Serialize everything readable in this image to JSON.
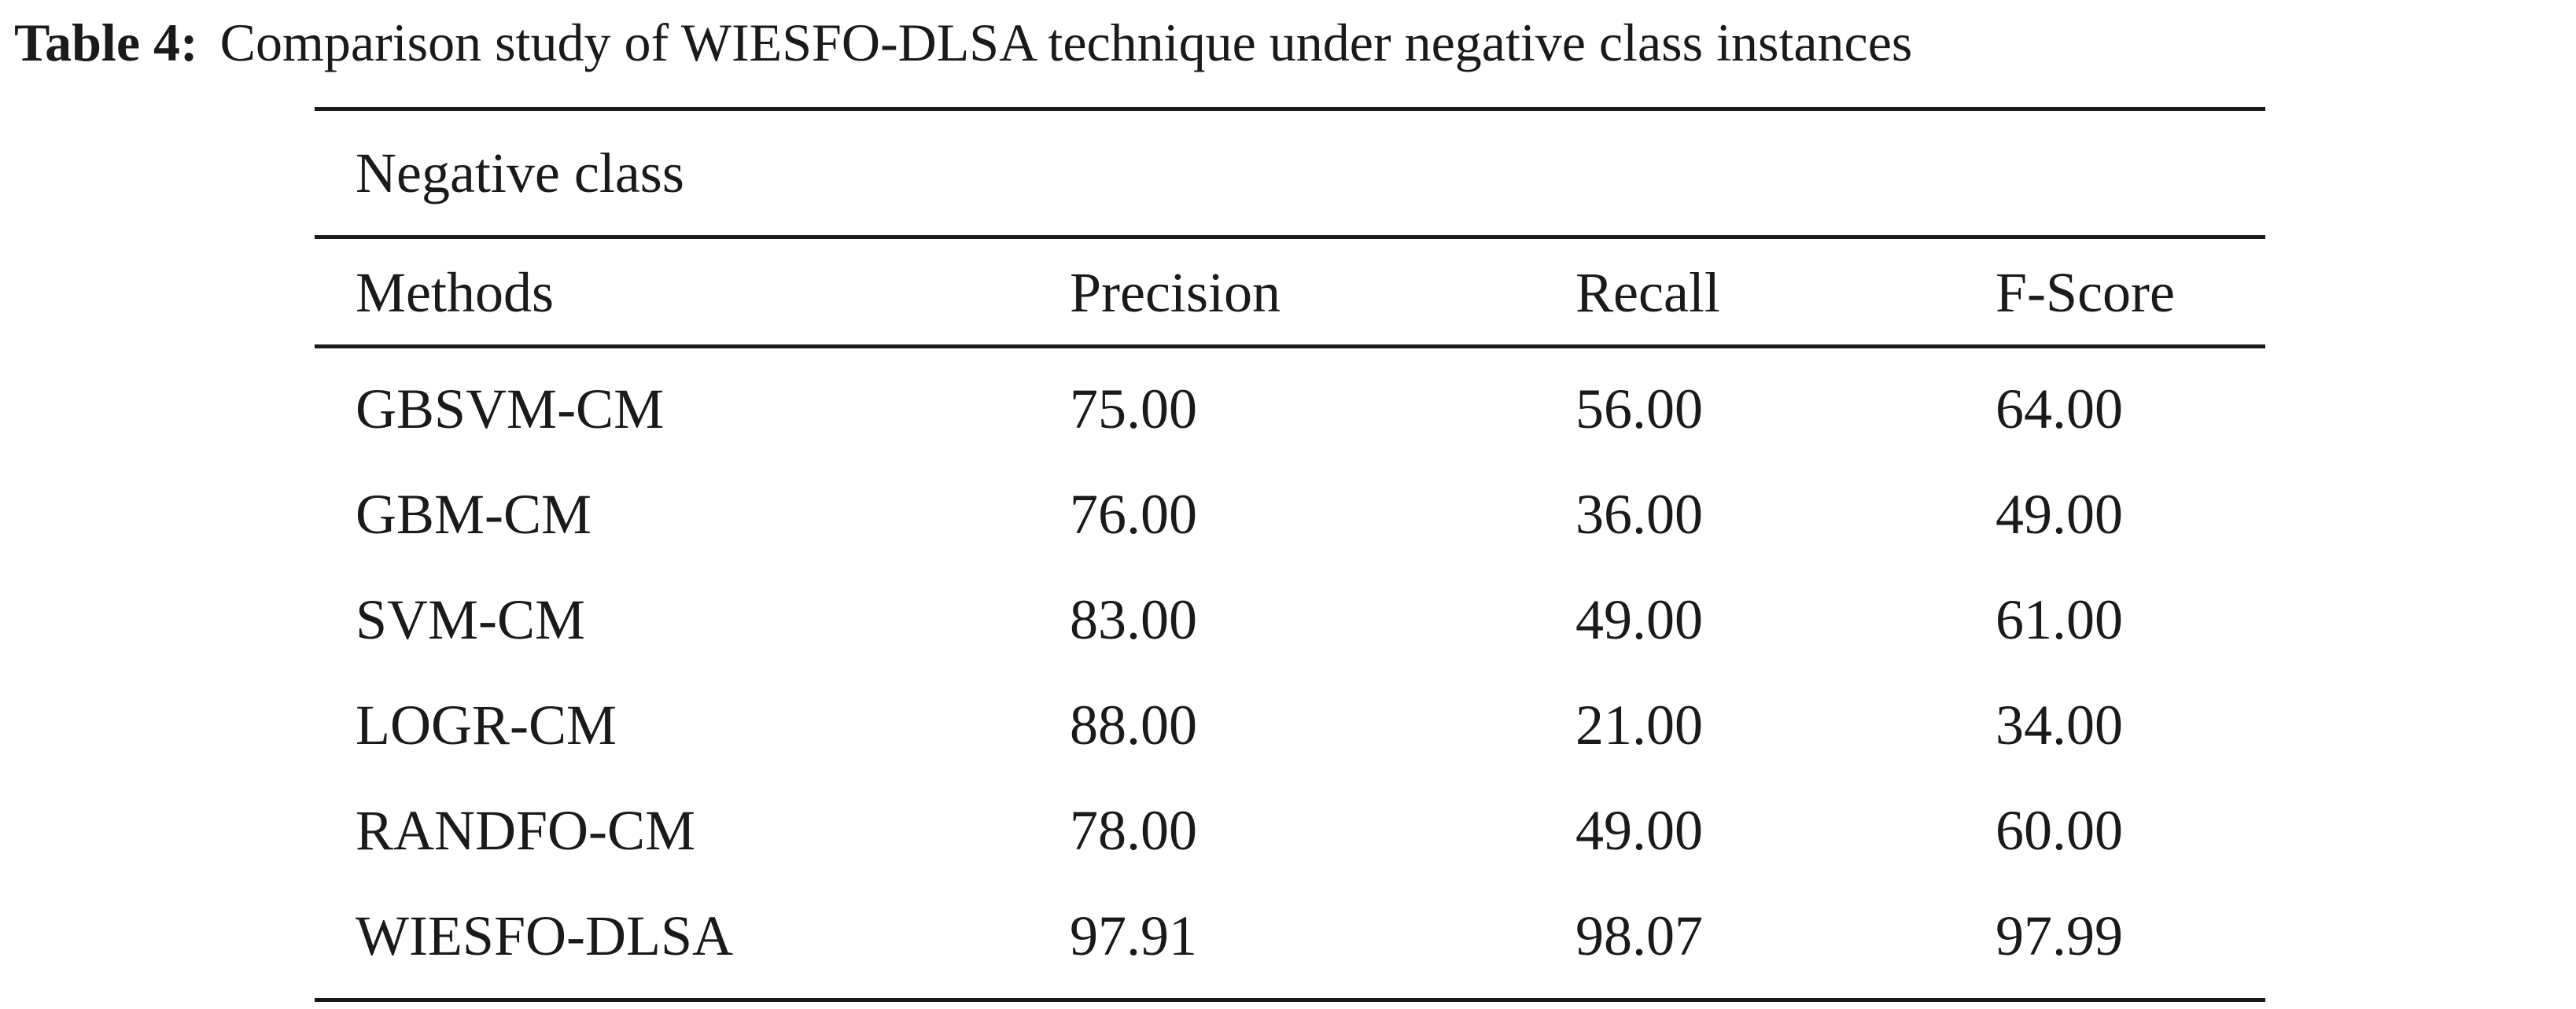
{
  "caption": {
    "label": "Table 4:",
    "text": "Comparison study of WIESFO-DLSA technique under negative class instances"
  },
  "table": {
    "group_label": "Negative class",
    "columns": [
      "Methods",
      "Precision",
      "Recall",
      "F-Score"
    ],
    "rows": [
      [
        "GBSVM-CM",
        "75.00",
        "56.00",
        "64.00"
      ],
      [
        "GBM-CM",
        "76.00",
        "36.00",
        "49.00"
      ],
      [
        "SVM-CM",
        "83.00",
        "49.00",
        "61.00"
      ],
      [
        "LOGR-CM",
        "88.00",
        "21.00",
        "34.00"
      ],
      [
        "RANDFO-CM",
        "78.00",
        "49.00",
        "60.00"
      ],
      [
        "WIESFO-DLSA",
        "97.91",
        "98.07",
        "97.99"
      ]
    ]
  }
}
